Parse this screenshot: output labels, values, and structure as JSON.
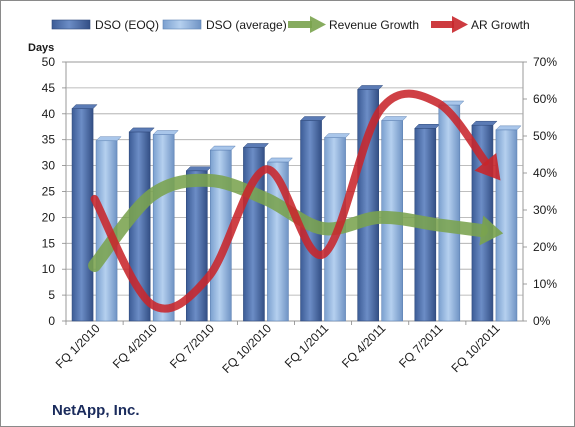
{
  "chart_data": {
    "type": "bar",
    "caption": "NetApp, Inc.",
    "ylabel": "Days",
    "ylim": [
      0,
      50
    ],
    "y2lim": [
      0,
      70
    ],
    "y_ticks": [
      "0",
      "5",
      "10",
      "15",
      "20",
      "25",
      "30",
      "35",
      "40",
      "45",
      "50"
    ],
    "y2_ticks": [
      "0%",
      "10%",
      "20%",
      "30%",
      "40%",
      "50%",
      "60%",
      "70%"
    ],
    "categories": [
      "FQ 1/2010",
      "FQ 4/2010",
      "FQ 7/2010",
      "FQ 10/2010",
      "FQ 1/2011",
      "FQ 4/2011",
      "FQ 7/2011",
      "FQ 10/2011"
    ],
    "grid": true,
    "legend_position": "top",
    "series": [
      {
        "name": "DSO (EOQ)",
        "kind": "bar",
        "axis": "left",
        "color": "#4a6aa8",
        "values": [
          41,
          36.5,
          29,
          33.5,
          38.7,
          44.7,
          37.2,
          37.8
        ]
      },
      {
        "name": "DSO (average)",
        "kind": "bar",
        "axis": "left",
        "color": "#8fb3dd",
        "values": [
          34.8,
          36,
          33,
          30.7,
          35.4,
          38.7,
          41.7,
          36.9
        ]
      },
      {
        "name": "Revenue Growth",
        "kind": "arrow",
        "axis": "right",
        "color": "#7aa34e",
        "values": [
          15,
          34,
          38,
          33,
          25,
          28,
          26,
          24
        ]
      },
      {
        "name": "AR Growth",
        "kind": "arrow",
        "axis": "right",
        "color": "#c8262b",
        "values": [
          33,
          4.5,
          12,
          41,
          18,
          57,
          59,
          40
        ]
      }
    ]
  }
}
